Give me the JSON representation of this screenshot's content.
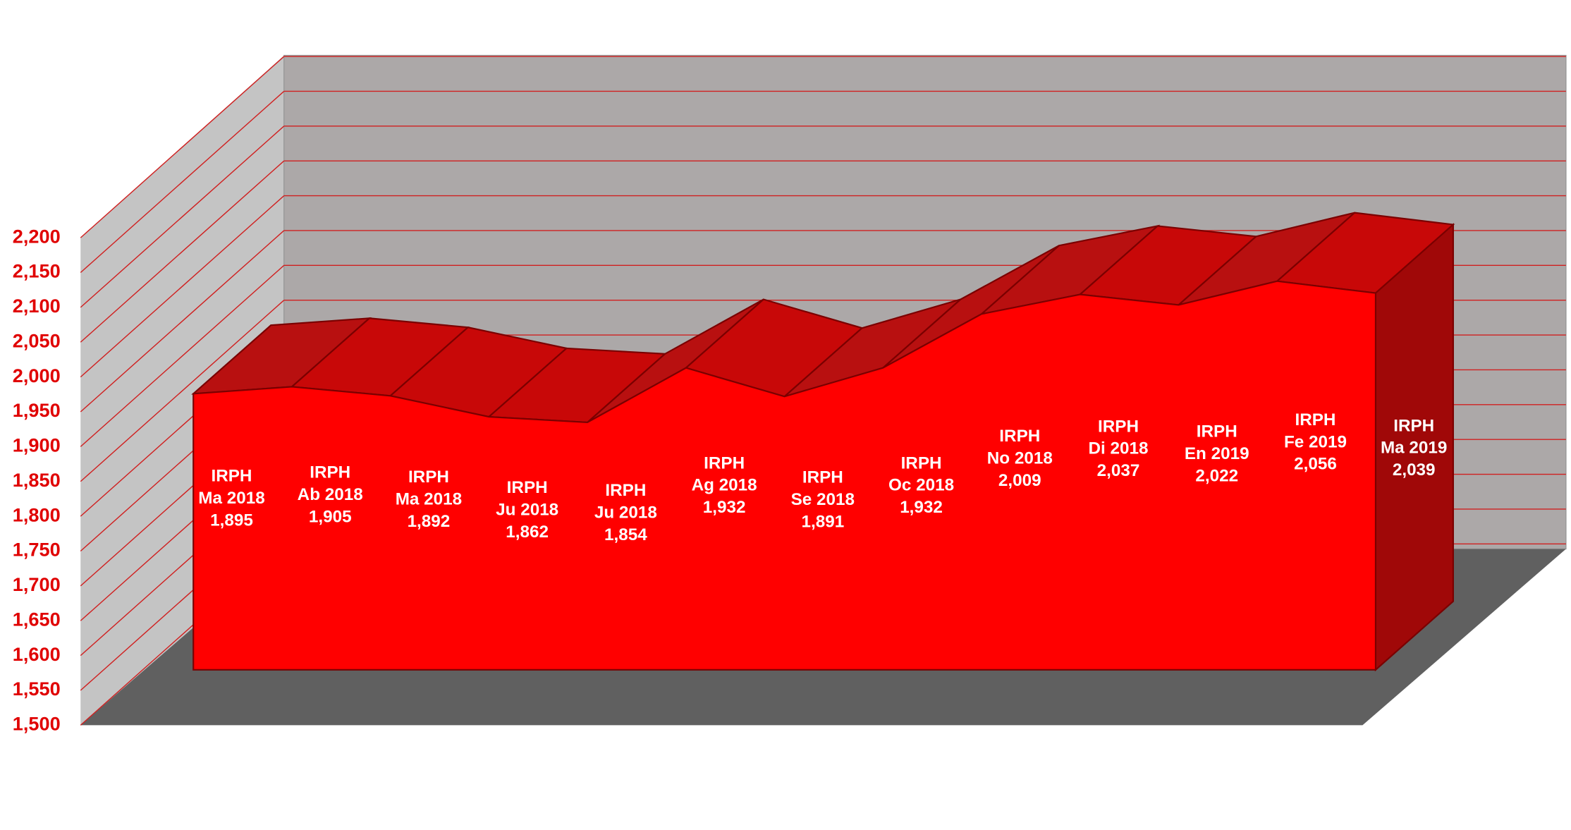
{
  "chart_data": {
    "type": "area3d",
    "categories": [
      "Ma 2018",
      "Ab 2018",
      "Ma 2018",
      "Ju 2018",
      "Ju 2018",
      "Ag 2018",
      "Se 2018",
      "Oc 2018",
      "No 2018",
      "Di 2018",
      "En 2019",
      "Fe 2019",
      "Ma 2019"
    ],
    "series": [
      {
        "name": "IRPH",
        "color": "#ff0000",
        "values": [
          1895,
          1905,
          1892,
          1862,
          1854,
          1932,
          1891,
          1932,
          2009,
          2037,
          2022,
          2056,
          2039
        ],
        "value_labels": [
          "1,895",
          "1,905",
          "1,892",
          "1,862",
          "1,854",
          "1,932",
          "1,891",
          "1,932",
          "2,009",
          "2,037",
          "2,022",
          "2,056",
          "2,039"
        ]
      }
    ],
    "ylim": [
      1500,
      2200
    ],
    "yticks": [
      {
        "value": 1500,
        "label": "1,500"
      },
      {
        "value": 1550,
        "label": "1,550"
      },
      {
        "value": 1600,
        "label": "1,600"
      },
      {
        "value": 1650,
        "label": "1,650"
      },
      {
        "value": 1700,
        "label": "1,700"
      },
      {
        "value": 1750,
        "label": "1,750"
      },
      {
        "value": 1800,
        "label": "1,800"
      },
      {
        "value": 1850,
        "label": "1,850"
      },
      {
        "value": 1900,
        "label": "1,900"
      },
      {
        "value": 1950,
        "label": "1,950"
      },
      {
        "value": 2000,
        "label": "2,000"
      },
      {
        "value": 2050,
        "label": "2,050"
      },
      {
        "value": 2100,
        "label": "2,100"
      },
      {
        "value": 2150,
        "label": "2,150"
      },
      {
        "value": 2200,
        "label": "2,200"
      }
    ],
    "grid": true
  }
}
